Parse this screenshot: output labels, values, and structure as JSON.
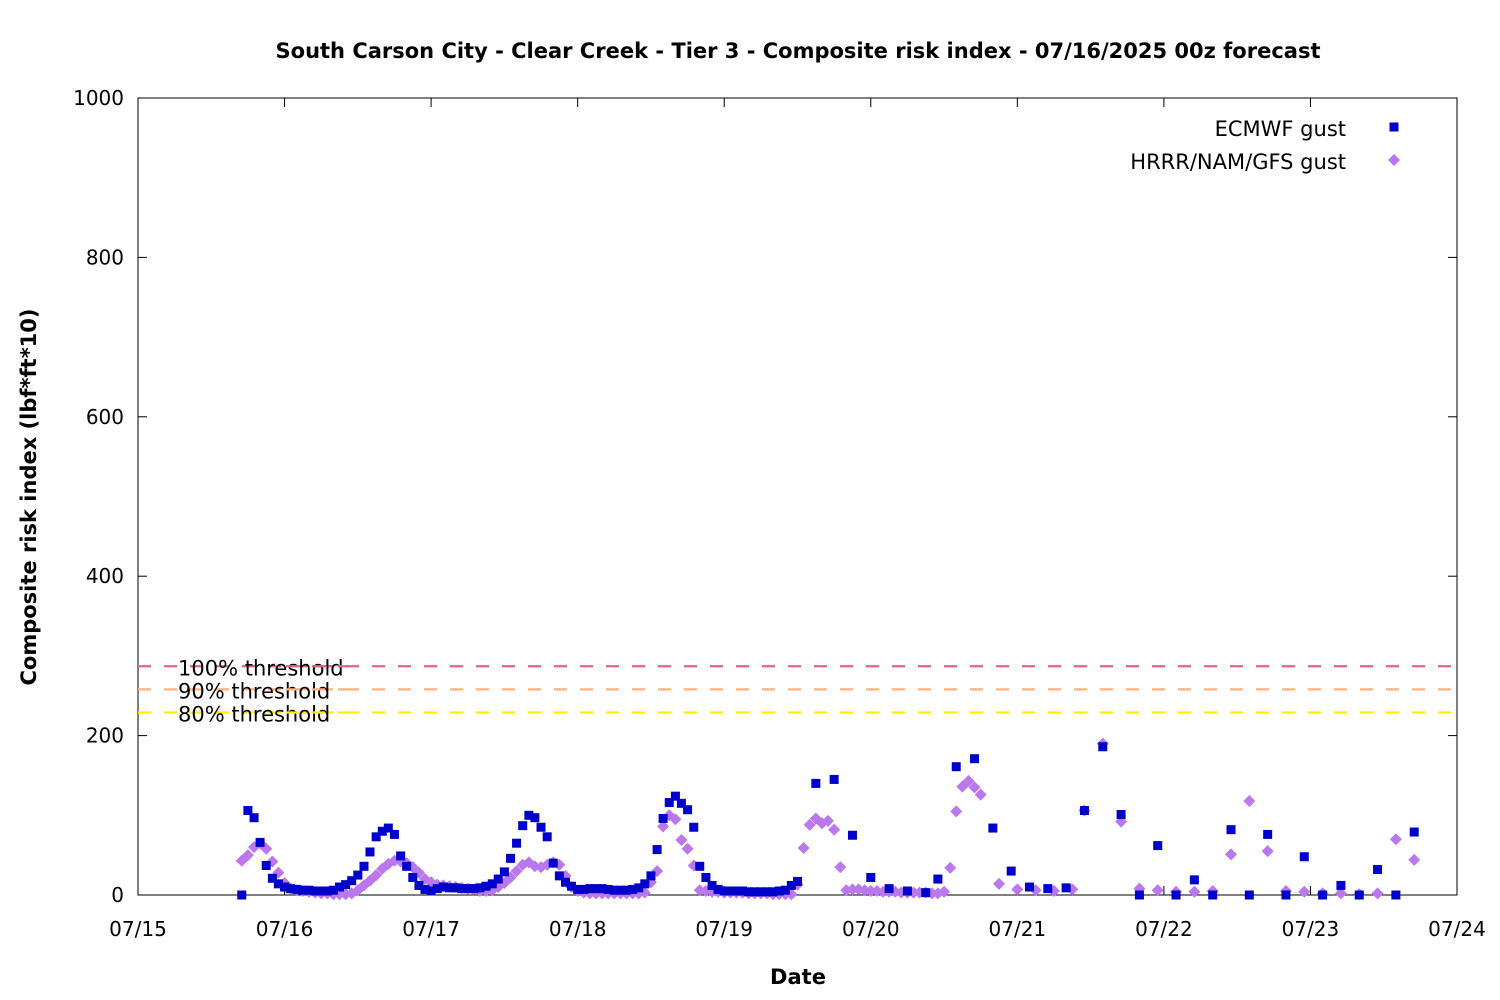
{
  "chart_data": {
    "type": "scatter",
    "title": "South Carson City - Clear Creek - Tier 3 - Composite risk index - 07/16/2025 00z forecast",
    "xlabel": "Date",
    "ylabel": "Composite risk index (lbf*ft*10)",
    "x_unit": "day of July 2025",
    "xlim": [
      15,
      24
    ],
    "ylim": [
      0,
      1000
    ],
    "x_ticks": [
      {
        "x": 15,
        "label": "07/15"
      },
      {
        "x": 16,
        "label": "07/16"
      },
      {
        "x": 17,
        "label": "07/17"
      },
      {
        "x": 18,
        "label": "07/18"
      },
      {
        "x": 19,
        "label": "07/19"
      },
      {
        "x": 20,
        "label": "07/20"
      },
      {
        "x": 21,
        "label": "07/21"
      },
      {
        "x": 22,
        "label": "07/22"
      },
      {
        "x": 23,
        "label": "07/23"
      },
      {
        "x": 24,
        "label": "07/24"
      }
    ],
    "y_ticks": [
      {
        "y": 0,
        "label": "0"
      },
      {
        "y": 200,
        "label": "200"
      },
      {
        "y": 400,
        "label": "400"
      },
      {
        "y": 600,
        "label": "600"
      },
      {
        "y": 800,
        "label": "800"
      },
      {
        "y": 1000,
        "label": "1000"
      }
    ],
    "grid": false,
    "legend_position": "top-right",
    "thresholds": [
      {
        "label": "100% threshold",
        "value": 287,
        "color": "#e06680"
      },
      {
        "label": "90% threshold",
        "value": 258,
        "color": "#ffb27f"
      },
      {
        "label": "80% threshold",
        "value": 229,
        "color": "#ffee00"
      }
    ],
    "series": [
      {
        "name": "ECMWF gust",
        "marker": "square",
        "color": "#0000cc",
        "points": [
          [
            15.708,
            0
          ],
          [
            15.75,
            106
          ],
          [
            15.792,
            97
          ],
          [
            15.833,
            66
          ],
          [
            15.875,
            37
          ],
          [
            15.917,
            21
          ],
          [
            15.958,
            14
          ],
          [
            16.0,
            10
          ],
          [
            16.042,
            8
          ],
          [
            16.083,
            7
          ],
          [
            16.125,
            6
          ],
          [
            16.167,
            6
          ],
          [
            16.208,
            5
          ],
          [
            16.25,
            5
          ],
          [
            16.292,
            5
          ],
          [
            16.333,
            6
          ],
          [
            16.375,
            10
          ],
          [
            16.417,
            13
          ],
          [
            16.458,
            18
          ],
          [
            16.5,
            25
          ],
          [
            16.542,
            36
          ],
          [
            16.583,
            54
          ],
          [
            16.625,
            73
          ],
          [
            16.667,
            80
          ],
          [
            16.708,
            84
          ],
          [
            16.75,
            76
          ],
          [
            16.792,
            49
          ],
          [
            16.833,
            36
          ],
          [
            16.875,
            22
          ],
          [
            16.917,
            12
          ],
          [
            16.958,
            7
          ],
          [
            17.0,
            5
          ],
          [
            17.042,
            8
          ],
          [
            17.083,
            10
          ],
          [
            17.125,
            9
          ],
          [
            17.167,
            9
          ],
          [
            17.208,
            8
          ],
          [
            17.25,
            8
          ],
          [
            17.292,
            8
          ],
          [
            17.333,
            9
          ],
          [
            17.375,
            11
          ],
          [
            17.417,
            14
          ],
          [
            17.458,
            20
          ],
          [
            17.5,
            29
          ],
          [
            17.542,
            46
          ],
          [
            17.583,
            65
          ],
          [
            17.625,
            87
          ],
          [
            17.667,
            100
          ],
          [
            17.708,
            97
          ],
          [
            17.75,
            85
          ],
          [
            17.792,
            73
          ],
          [
            17.833,
            40
          ],
          [
            17.875,
            24
          ],
          [
            17.917,
            16
          ],
          [
            17.958,
            11
          ],
          [
            18.0,
            7
          ],
          [
            18.042,
            7
          ],
          [
            18.083,
            8
          ],
          [
            18.125,
            8
          ],
          [
            18.167,
            8
          ],
          [
            18.208,
            7
          ],
          [
            18.25,
            6
          ],
          [
            18.292,
            6
          ],
          [
            18.333,
            6
          ],
          [
            18.375,
            7
          ],
          [
            18.417,
            9
          ],
          [
            18.458,
            14
          ],
          [
            18.5,
            24
          ],
          [
            18.542,
            57
          ],
          [
            18.583,
            96
          ],
          [
            18.625,
            116
          ],
          [
            18.667,
            124
          ],
          [
            18.708,
            115
          ],
          [
            18.75,
            107
          ],
          [
            18.792,
            85
          ],
          [
            18.833,
            36
          ],
          [
            18.875,
            22
          ],
          [
            18.917,
            12
          ],
          [
            18.958,
            7
          ],
          [
            19.0,
            5
          ],
          [
            19.042,
            5
          ],
          [
            19.083,
            5
          ],
          [
            19.125,
            5
          ],
          [
            19.167,
            4
          ],
          [
            19.208,
            4
          ],
          [
            19.25,
            4
          ],
          [
            19.292,
            4
          ],
          [
            19.333,
            4
          ],
          [
            19.375,
            5
          ],
          [
            19.417,
            6
          ],
          [
            19.458,
            12
          ],
          [
            19.5,
            17
          ],
          [
            19.625,
            140
          ],
          [
            19.75,
            145
          ],
          [
            19.875,
            75
          ],
          [
            20.0,
            22
          ],
          [
            20.125,
            8
          ],
          [
            20.25,
            5
          ],
          [
            20.375,
            3
          ],
          [
            20.458,
            20
          ],
          [
            20.583,
            161
          ],
          [
            20.708,
            171
          ],
          [
            20.833,
            84
          ],
          [
            20.958,
            30
          ],
          [
            21.083,
            10
          ],
          [
            21.208,
            8
          ],
          [
            21.333,
            9
          ],
          [
            21.458,
            106
          ],
          [
            21.583,
            186
          ],
          [
            21.708,
            101
          ],
          [
            21.833,
            0
          ],
          [
            21.958,
            62
          ],
          [
            22.083,
            0
          ],
          [
            22.208,
            19
          ],
          [
            22.333,
            0
          ],
          [
            22.458,
            82
          ],
          [
            22.583,
            0
          ],
          [
            22.708,
            76
          ],
          [
            22.833,
            0
          ],
          [
            22.958,
            48
          ],
          [
            23.083,
            0
          ],
          [
            23.208,
            12
          ],
          [
            23.333,
            0
          ],
          [
            23.458,
            32
          ],
          [
            23.583,
            0
          ],
          [
            23.708,
            79
          ]
        ]
      },
      {
        "name": "HRRR/NAM/GFS gust",
        "marker": "diamond",
        "color": "#bb77ee",
        "points": [
          [
            15.708,
            43
          ],
          [
            15.75,
            50
          ],
          [
            15.792,
            60
          ],
          [
            15.833,
            65
          ],
          [
            15.875,
            58
          ],
          [
            15.917,
            42
          ],
          [
            15.958,
            28
          ],
          [
            16.0,
            15
          ],
          [
            16.042,
            8
          ],
          [
            16.083,
            6
          ],
          [
            16.125,
            5
          ],
          [
            16.167,
            4
          ],
          [
            16.208,
            3
          ],
          [
            16.25,
            2
          ],
          [
            16.292,
            2
          ],
          [
            16.333,
            1
          ],
          [
            16.375,
            1
          ],
          [
            16.417,
            1
          ],
          [
            16.458,
            2
          ],
          [
            16.5,
            6
          ],
          [
            16.542,
            12
          ],
          [
            16.583,
            18
          ],
          [
            16.625,
            25
          ],
          [
            16.667,
            33
          ],
          [
            16.708,
            39
          ],
          [
            16.75,
            43
          ],
          [
            16.792,
            42
          ],
          [
            16.833,
            40
          ],
          [
            16.875,
            35
          ],
          [
            16.917,
            28
          ],
          [
            16.958,
            20
          ],
          [
            17.0,
            16
          ],
          [
            17.042,
            13
          ],
          [
            17.083,
            12
          ],
          [
            17.125,
            11
          ],
          [
            17.167,
            10
          ],
          [
            17.208,
            9
          ],
          [
            17.25,
            8
          ],
          [
            17.292,
            7
          ],
          [
            17.333,
            5
          ],
          [
            17.375,
            5
          ],
          [
            17.417,
            6
          ],
          [
            17.458,
            10
          ],
          [
            17.5,
            15
          ],
          [
            17.542,
            22
          ],
          [
            17.583,
            30
          ],
          [
            17.625,
            38
          ],
          [
            17.667,
            41
          ],
          [
            17.708,
            36
          ],
          [
            17.75,
            35
          ],
          [
            17.792,
            38
          ],
          [
            17.833,
            41
          ],
          [
            17.875,
            38
          ],
          [
            17.917,
            24
          ],
          [
            17.958,
            10
          ],
          [
            18.0,
            5
          ],
          [
            18.042,
            3
          ],
          [
            18.083,
            2
          ],
          [
            18.125,
            2
          ],
          [
            18.167,
            2
          ],
          [
            18.208,
            2
          ],
          [
            18.25,
            2
          ],
          [
            18.292,
            2
          ],
          [
            18.333,
            2
          ],
          [
            18.375,
            2
          ],
          [
            18.417,
            2
          ],
          [
            18.458,
            3
          ],
          [
            18.5,
            16
          ],
          [
            18.542,
            30
          ],
          [
            18.583,
            86
          ],
          [
            18.625,
            100
          ],
          [
            18.667,
            95
          ],
          [
            18.708,
            69
          ],
          [
            18.75,
            58
          ],
          [
            18.792,
            37
          ],
          [
            18.833,
            6
          ],
          [
            18.875,
            5
          ],
          [
            18.917,
            4
          ],
          [
            18.958,
            4
          ],
          [
            19.0,
            3
          ],
          [
            19.042,
            3
          ],
          [
            19.083,
            3
          ],
          [
            19.125,
            3
          ],
          [
            19.167,
            2
          ],
          [
            19.208,
            2
          ],
          [
            19.25,
            2
          ],
          [
            19.292,
            2
          ],
          [
            19.333,
            1
          ],
          [
            19.375,
            1
          ],
          [
            19.417,
            1
          ],
          [
            19.458,
            1
          ],
          [
            19.5,
            13
          ],
          [
            19.542,
            59
          ],
          [
            19.583,
            88
          ],
          [
            19.625,
            96
          ],
          [
            19.667,
            90
          ],
          [
            19.708,
            93
          ],
          [
            19.75,
            82
          ],
          [
            19.792,
            35
          ],
          [
            19.833,
            6
          ],
          [
            19.875,
            7
          ],
          [
            19.917,
            7
          ],
          [
            19.958,
            6
          ],
          [
            20.0,
            5
          ],
          [
            20.042,
            5
          ],
          [
            20.083,
            4
          ],
          [
            20.125,
            4
          ],
          [
            20.167,
            4
          ],
          [
            20.208,
            3
          ],
          [
            20.25,
            3
          ],
          [
            20.292,
            3
          ],
          [
            20.333,
            3
          ],
          [
            20.375,
            3
          ],
          [
            20.417,
            2
          ],
          [
            20.458,
            2
          ],
          [
            20.5,
            4
          ],
          [
            20.542,
            34
          ],
          [
            20.583,
            105
          ],
          [
            20.625,
            136
          ],
          [
            20.667,
            143
          ],
          [
            20.708,
            135
          ],
          [
            20.75,
            126
          ],
          [
            20.875,
            14
          ],
          [
            21.0,
            7
          ],
          [
            21.125,
            6
          ],
          [
            21.25,
            5
          ],
          [
            21.375,
            7
          ],
          [
            21.458,
            106
          ],
          [
            21.583,
            190
          ],
          [
            21.708,
            92
          ],
          [
            21.833,
            8
          ],
          [
            21.958,
            6
          ],
          [
            22.083,
            4
          ],
          [
            22.208,
            4
          ],
          [
            22.333,
            5
          ],
          [
            22.458,
            51
          ],
          [
            22.583,
            118
          ],
          [
            22.708,
            55
          ],
          [
            22.833,
            5
          ],
          [
            22.958,
            4
          ],
          [
            23.083,
            2
          ],
          [
            23.208,
            2
          ],
          [
            23.333,
            1
          ],
          [
            23.458,
            2
          ],
          [
            23.583,
            70
          ],
          [
            23.708,
            44
          ]
        ]
      }
    ]
  }
}
